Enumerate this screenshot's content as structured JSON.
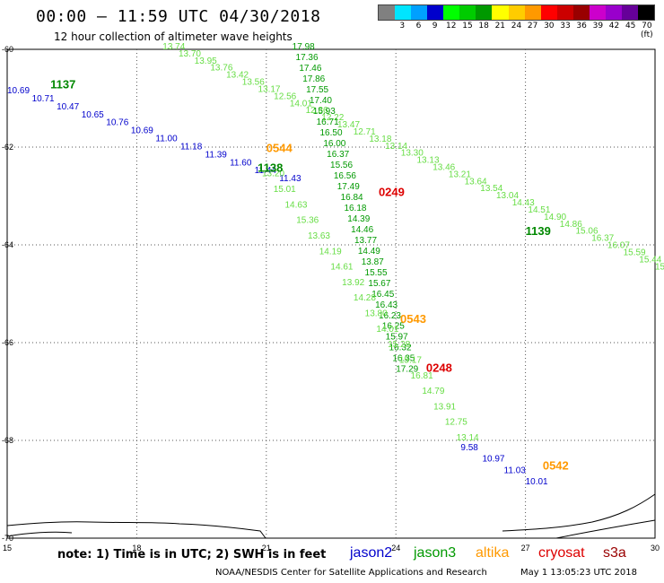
{
  "header": {
    "title": "00:00 – 11:59 UTC 04/30/2018",
    "subtitle": "12 hour collection of altimeter wave heights"
  },
  "colorbar": {
    "labels": [
      "",
      "3",
      "6",
      "9",
      "12",
      "15",
      "18",
      "21",
      "24",
      "27",
      "30",
      "33",
      "36",
      "39",
      "42",
      "45",
      "70 (ft)"
    ],
    "colors": [
      "#808080",
      "#00e5ff",
      "#00a0ff",
      "#0000cc",
      "#00ff00",
      "#00cc00",
      "#009900",
      "#ffff00",
      "#ffcc00",
      "#ff9900",
      "#ff0000",
      "#cc0000",
      "#990000",
      "#cc00cc",
      "#9900cc",
      "#660099",
      "#000000"
    ]
  },
  "map": {
    "lat_labels": [
      "-60",
      "-62",
      "-64",
      "-66",
      "-68",
      "-70"
    ],
    "lon_labels": [
      "15",
      "18",
      "21",
      "24",
      "27",
      "30"
    ],
    "lat_values": [
      -60,
      -62,
      -64,
      -66,
      -68,
      -70
    ],
    "lon_values": [
      15,
      18,
      21,
      24,
      27,
      30
    ],
    "lon_range": [
      15,
      30
    ],
    "lat_range": [
      -60,
      -70
    ],
    "times": [
      {
        "label": "1137",
        "lon": 16.0,
        "lat": -60.8,
        "color": "#008800"
      },
      {
        "label": "0544",
        "lon": 21.0,
        "lat": -62.1,
        "color": "#ff9900"
      },
      {
        "label": "1138",
        "lon": 20.8,
        "lat": -62.5,
        "color": "#008800"
      },
      {
        "label": "0249",
        "lon": 23.6,
        "lat": -63.0,
        "color": "#dd0000"
      },
      {
        "label": "1139",
        "lon": 27.0,
        "lat": -63.8,
        "color": "#008800"
      },
      {
        "label": "0543",
        "lon": 24.1,
        "lat": -65.6,
        "color": "#ff9900"
      },
      {
        "label": "0248",
        "lon": 24.7,
        "lat": -66.6,
        "color": "#dd0000"
      },
      {
        "label": "0542",
        "lon": 27.4,
        "lat": -68.6,
        "color": "#ff9900"
      }
    ],
    "tracks": [
      {
        "name": "jason2",
        "color": "#0000cc",
        "start": [
          15.0,
          -60.9
        ],
        "end": [
          21.3,
          -62.7
        ],
        "values": [
          "10.69",
          "10.71",
          "10.47",
          "10.65",
          "10.76",
          "10.69",
          "11.00",
          "11.18",
          "11.39",
          "11.60",
          "11.44",
          "11.43"
        ]
      },
      {
        "name": "jason3",
        "color": "#66dd44",
        "start": [
          18.6,
          -60.0
        ],
        "end": [
          30.0,
          -64.5
        ],
        "values": [
          "13.74",
          "13.70",
          "13.95",
          "13.76",
          "13.42",
          "13.56",
          "13.17",
          "12.56",
          "14.01",
          "12.36",
          "12.22",
          "13.47",
          "12.71",
          "13.18",
          "13.14",
          "13.30",
          "13.13",
          "13.46",
          "13.21",
          "13.64",
          "13.54",
          "13.04",
          "14.43",
          "14.51",
          "14.90",
          "14.86",
          "15.06",
          "16.37",
          "16.07",
          "15.59",
          "15.44",
          "15.1"
        ]
      },
      {
        "name": "jason3b",
        "color": "#009900",
        "start": [
          21.6,
          -60.0
        ],
        "end": [
          24.0,
          -66.6
        ],
        "values": [
          "17.98",
          "17.36",
          "17.46",
          "17.86",
          "17.55",
          "17.40",
          "15.93",
          "16.71",
          "16.50",
          "16.00",
          "16.37",
          "15.56",
          "16.56",
          "17.49",
          "16.84",
          "16.18",
          "14.39",
          "14.46",
          "13.77",
          "14.49",
          "13.87",
          "15.55",
          "15.67",
          "16.45",
          "16.43",
          "16.23",
          "16.25",
          "15.97",
          "16.32",
          "16.35",
          "17.29"
        ]
      },
      {
        "name": "jason3c",
        "color": "#66dd44",
        "start": [
          20.9,
          -62.6
        ],
        "end": [
          25.4,
          -68.0
        ],
        "values": [
          "13.20",
          "15.01",
          "14.63",
          "15.36",
          "13.63",
          "14.19",
          "14.61",
          "13.92",
          "14.28",
          "13.80",
          "14.01",
          "15.28",
          "15.17",
          "16.81",
          "14.79",
          "13.91",
          "12.75",
          "13.14"
        ]
      },
      {
        "name": "jason2b",
        "color": "#0000cc",
        "start": [
          25.5,
          -68.2
        ],
        "end": [
          27.0,
          -68.9
        ],
        "values": [
          "9.58",
          "10.97",
          "11.03",
          "10.01"
        ]
      }
    ]
  },
  "footer": {
    "note": "note: 1) Time is in UTC; 2) SWH is in feet",
    "satellites": [
      {
        "name": "jason2",
        "color": "#0000cc"
      },
      {
        "name": "jason3",
        "color": "#009900"
      },
      {
        "name": "altika",
        "color": "#ff9900"
      },
      {
        "name": "cryosat",
        "color": "#dd0000"
      },
      {
        "name": "s3a",
        "color": "#990000"
      }
    ],
    "credit": "NOAA/NESDIS Center for Satellite Applications and Research",
    "date": "May  1 13:05:23 UTC 2018"
  }
}
